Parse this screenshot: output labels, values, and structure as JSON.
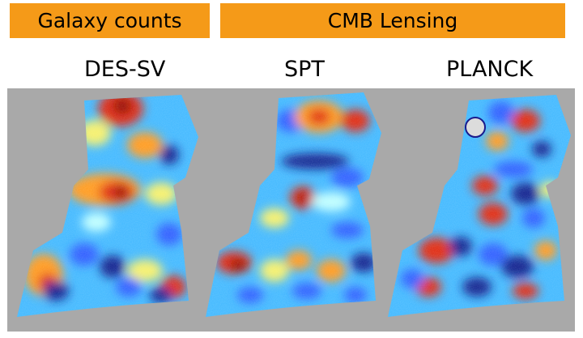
{
  "banners": {
    "galaxy_counts": "Galaxy counts",
    "cmb_lensing": "CMB Lensing"
  },
  "panels": [
    {
      "title": "DES-SV"
    },
    {
      "title": "SPT"
    },
    {
      "title": "PLANCK"
    }
  ],
  "colors": {
    "banner": "#f59a18",
    "map_background": "#a9a9a9",
    "colormap": [
      "#0a1a8c",
      "#2a5cff",
      "#3fb8ff",
      "#bfffff",
      "#f5f06a",
      "#ff9a1c",
      "#e02810",
      "#8c0000"
    ]
  }
}
